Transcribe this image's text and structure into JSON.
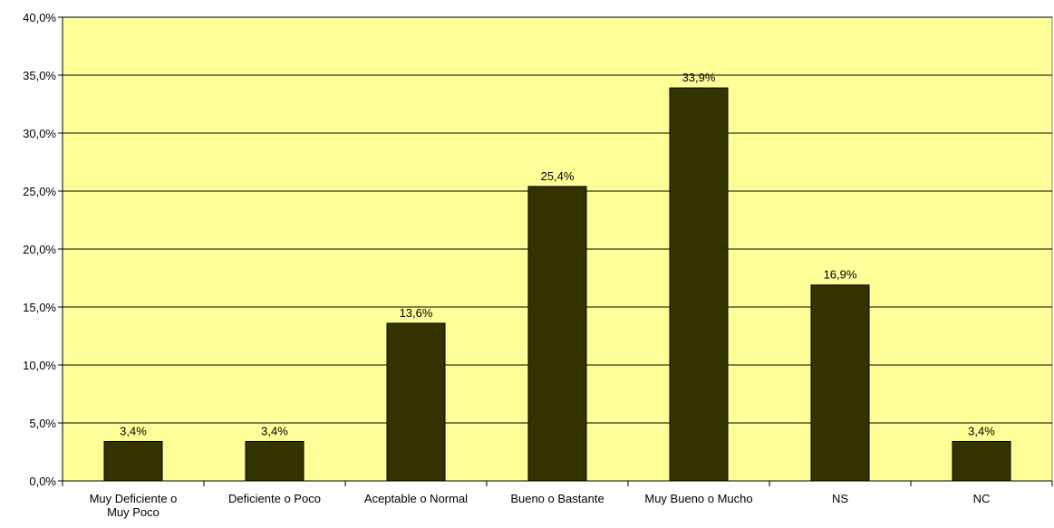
{
  "chart_data": {
    "type": "bar",
    "categories": [
      [
        "Muy Deficiente o",
        "Muy Poco"
      ],
      [
        "Deficiente o Poco"
      ],
      [
        "Aceptable o Normal"
      ],
      [
        "Bueno o Bastante"
      ],
      [
        "Muy Bueno o Mucho"
      ],
      [
        "NS"
      ],
      [
        "NC"
      ]
    ],
    "values": [
      3.4,
      3.4,
      13.6,
      25.4,
      33.9,
      16.9,
      3.4
    ],
    "value_labels": [
      "3,4%",
      "3,4%",
      "13,6%",
      "25,4%",
      "33,9%",
      "16,9%",
      "3,4%"
    ],
    "ylim": [
      0,
      40
    ],
    "yticks": [
      0,
      5,
      10,
      15,
      20,
      25,
      30,
      35,
      40
    ],
    "ytick_labels": [
      "0,0%",
      "5,0%",
      "10,0%",
      "15,0%",
      "20,0%",
      "25,0%",
      "30,0%",
      "35,0%",
      "40,0%"
    ],
    "grid": true,
    "legend": "none",
    "colors": {
      "plot_background": "#FFFF99",
      "bar_fill": "#333300",
      "bar_stroke": "#000000",
      "grid": "#000000",
      "axis": "#000000"
    }
  }
}
